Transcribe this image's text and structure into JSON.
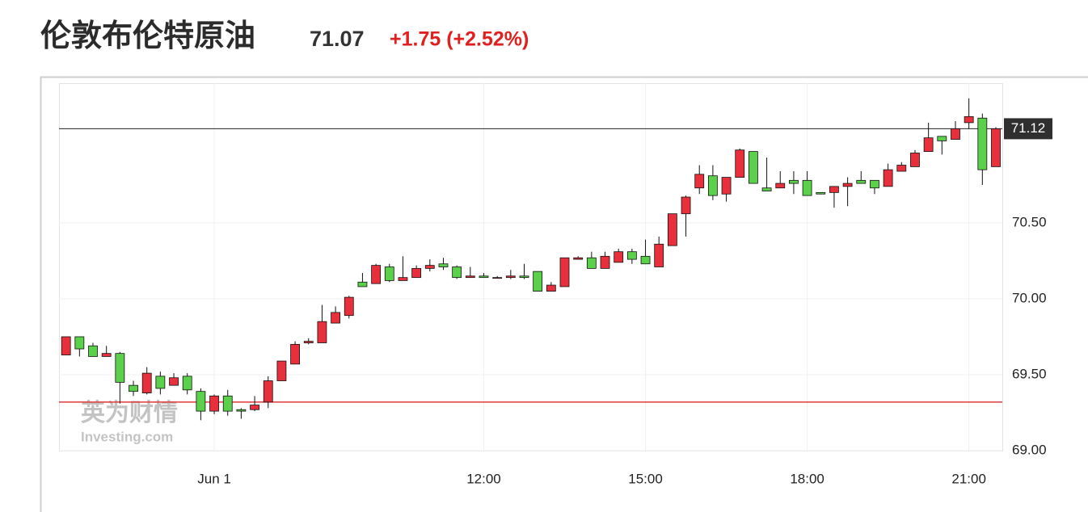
{
  "header": {
    "title": "伦敦布伦特原油",
    "price": "71.07",
    "change": "+1.75 (+2.52%)"
  },
  "chart_data": {
    "type": "candlestick",
    "x": [
      4.25,
      4.5,
      4.75,
      5,
      5.25,
      5.5,
      5.75,
      6,
      6.25,
      6.5,
      6.75,
      7,
      7.25,
      7.5,
      7.75,
      8,
      8.25,
      8.5,
      8.75,
      9,
      9.25,
      9.5,
      9.75,
      10,
      10.25,
      10.5,
      10.75,
      11,
      11.25,
      11.5,
      11.75,
      12,
      12.25,
      12.5,
      12.75,
      13,
      13.25,
      13.5,
      13.75,
      14,
      14.25,
      14.5,
      14.75,
      15,
      15.25,
      15.5,
      15.75,
      16,
      16.25,
      16.5,
      16.75,
      17,
      17.25,
      17.5,
      17.75,
      18,
      18.25,
      18.5,
      18.75,
      19,
      19.25,
      19.5,
      19.75,
      20,
      20.25,
      20.5,
      20.75,
      21,
      21.25,
      21.5
    ],
    "open": [
      69.63,
      69.75,
      69.69,
      69.62,
      69.64,
      69.43,
      69.38,
      69.49,
      69.43,
      69.49,
      69.39,
      69.26,
      69.36,
      69.27,
      69.27,
      69.32,
      69.46,
      69.57,
      69.71,
      69.71,
      69.84,
      69.89,
      70.11,
      70.1,
      70.21,
      70.12,
      70.14,
      70.2,
      70.23,
      70.21,
      70.14,
      70.15,
      70.14,
      70.14,
      70.15,
      70.18,
      70.05,
      70.08,
      70.26,
      70.27,
      70.2,
      70.24,
      70.31,
      70.28,
      70.21,
      70.35,
      70.56,
      70.73,
      70.81,
      70.69,
      70.8,
      70.97,
      70.73,
      70.73,
      70.78,
      70.78,
      70.7,
      70.7,
      70.74,
      70.78,
      70.78,
      70.74,
      70.84,
      70.87,
      70.97,
      71.07,
      71.05,
      71.16,
      71.19,
      70.87
    ],
    "high": [
      69.75,
      69.75,
      69.71,
      69.69,
      69.65,
      69.46,
      69.55,
      69.52,
      69.51,
      69.51,
      69.41,
      69.37,
      69.4,
      69.28,
      69.36,
      69.49,
      69.59,
      69.72,
      69.74,
      69.96,
      69.95,
      70.02,
      70.17,
      70.23,
      70.23,
      70.28,
      70.22,
      70.26,
      70.27,
      70.22,
      70.21,
      70.17,
      70.15,
      70.19,
      70.23,
      70.18,
      70.11,
      70.27,
      70.28,
      70.31,
      70.31,
      70.33,
      70.33,
      70.39,
      70.41,
      70.56,
      70.68,
      70.88,
      70.88,
      70.8,
      70.99,
      70.97,
      70.93,
      70.84,
      70.84,
      70.84,
      70.7,
      70.74,
      70.8,
      70.84,
      70.78,
      70.89,
      70.9,
      70.98,
      71.16,
      71.07,
      71.17,
      71.32,
      71.22,
      71.13
    ],
    "low": [
      69.63,
      69.62,
      69.62,
      69.62,
      69.31,
      69.36,
      69.37,
      69.37,
      69.43,
      69.37,
      69.2,
      69.24,
      69.23,
      69.21,
      69.26,
      69.28,
      69.46,
      69.57,
      69.7,
      69.71,
      69.84,
      69.87,
      70.08,
      70.1,
      70.11,
      70.12,
      70.14,
      70.18,
      70.19,
      70.13,
      70.14,
      70.14,
      70.14,
      70.13,
      70.13,
      70.05,
      70.05,
      70.08,
      70.26,
      70.2,
      70.2,
      70.24,
      70.23,
      70.23,
      70.21,
      70.35,
      70.41,
      70.69,
      70.65,
      70.64,
      70.8,
      70.76,
      70.71,
      70.73,
      70.69,
      70.68,
      70.69,
      70.6,
      70.61,
      70.76,
      70.69,
      70.74,
      70.84,
      70.87,
      70.97,
      70.95,
      71.05,
      71.12,
      70.75,
      70.87
    ],
    "close": [
      69.75,
      69.67,
      69.62,
      69.64,
      69.45,
      69.39,
      69.51,
      69.41,
      69.48,
      69.4,
      69.26,
      69.36,
      69.26,
      69.26,
      69.3,
      69.46,
      69.59,
      69.7,
      69.72,
      69.85,
      69.91,
      70.01,
      70.08,
      70.22,
      70.12,
      70.14,
      70.2,
      70.22,
      70.21,
      70.14,
      70.15,
      70.14,
      70.14,
      70.15,
      70.14,
      70.05,
      70.09,
      70.27,
      70.27,
      70.2,
      70.28,
      70.31,
      70.26,
      70.23,
      70.36,
      70.56,
      70.67,
      70.82,
      70.68,
      70.8,
      70.98,
      70.76,
      70.71,
      70.76,
      70.76,
      70.68,
      70.69,
      70.74,
      70.76,
      70.76,
      70.73,
      70.85,
      70.88,
      70.96,
      71.06,
      71.04,
      71.12,
      71.2,
      70.85,
      71.12
    ],
    "up_color": "#e8303c",
    "down_color": "#5bd04a",
    "xlim": [
      4.12,
      21.62
    ],
    "xticks": [
      {
        "value": 7,
        "label": "Jun 1"
      },
      {
        "value": 12,
        "label": "12:00"
      },
      {
        "value": 15,
        "label": "15:00"
      },
      {
        "value": 18,
        "label": "18:00"
      },
      {
        "value": 21,
        "label": "21:00"
      }
    ],
    "ylim": [
      69.0,
      71.42
    ],
    "yticks": [
      {
        "value": 69,
        "label": "69.00"
      },
      {
        "value": 69.5,
        "label": "69.50"
      },
      {
        "value": 70,
        "label": "70.00"
      },
      {
        "value": 70.5,
        "label": "70.50"
      }
    ],
    "grid": true,
    "last_price": {
      "value": 71.12,
      "label": "71.12"
    },
    "reference_line": {
      "value": 69.32,
      "color": "#e03a3a"
    },
    "watermark": [
      "英为财情",
      "Investing.com"
    ]
  }
}
